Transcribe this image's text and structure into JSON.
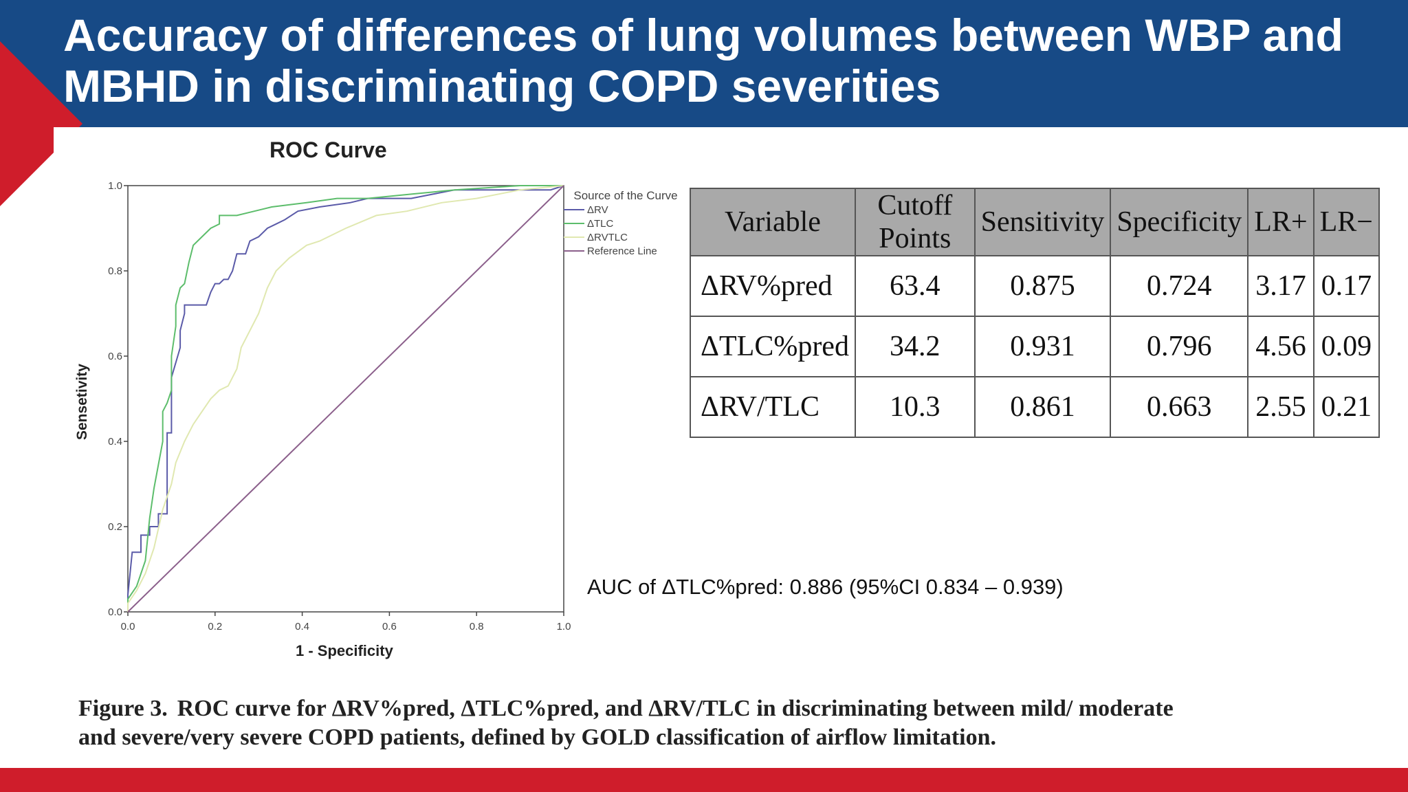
{
  "slide": {
    "title": "Accuracy of differences of lung volumes between WBP and MBHD in discriminating COPD severities",
    "colors": {
      "header": "#174a86",
      "accent": "#cf1d2b"
    }
  },
  "chart_data": {
    "type": "line",
    "title": "ROC Curve",
    "xlabel": "1 - Specificity",
    "ylabel": "Sensetivity",
    "xlim": [
      0,
      1
    ],
    "ylim": [
      0,
      1
    ],
    "x_ticks": [
      "0.0",
      "0.2",
      "0.4",
      "0.6",
      "0.8",
      "1.0"
    ],
    "y_ticks": [
      "0.0",
      "0.2",
      "0.4",
      "0.6",
      "0.8",
      "1.0"
    ],
    "legend": {
      "title": "Source of the Curve",
      "position": "right",
      "items": [
        "ΔRV",
        "ΔTLC",
        "ΔRVTLC",
        "Reference Line"
      ]
    },
    "series": [
      {
        "name": "ΔRV",
        "color": "#5a5aa8",
        "points": [
          [
            0,
            0
          ],
          [
            0,
            0.04
          ],
          [
            0.01,
            0.14
          ],
          [
            0.03,
            0.14
          ],
          [
            0.03,
            0.18
          ],
          [
            0.05,
            0.18
          ],
          [
            0.05,
            0.2
          ],
          [
            0.07,
            0.2
          ],
          [
            0.07,
            0.23
          ],
          [
            0.09,
            0.23
          ],
          [
            0.09,
            0.42
          ],
          [
            0.1,
            0.42
          ],
          [
            0.1,
            0.55
          ],
          [
            0.12,
            0.62
          ],
          [
            0.12,
            0.66
          ],
          [
            0.13,
            0.7
          ],
          [
            0.13,
            0.72
          ],
          [
            0.18,
            0.72
          ],
          [
            0.19,
            0.75
          ],
          [
            0.2,
            0.77
          ],
          [
            0.21,
            0.77
          ],
          [
            0.22,
            0.78
          ],
          [
            0.23,
            0.78
          ],
          [
            0.24,
            0.8
          ],
          [
            0.25,
            0.84
          ],
          [
            0.27,
            0.84
          ],
          [
            0.28,
            0.87
          ],
          [
            0.3,
            0.88
          ],
          [
            0.32,
            0.9
          ],
          [
            0.34,
            0.91
          ],
          [
            0.36,
            0.92
          ],
          [
            0.39,
            0.94
          ],
          [
            0.44,
            0.95
          ],
          [
            0.51,
            0.96
          ],
          [
            0.55,
            0.97
          ],
          [
            0.65,
            0.97
          ],
          [
            0.7,
            0.98
          ],
          [
            0.75,
            0.99
          ],
          [
            0.97,
            0.99
          ],
          [
            1,
            1
          ]
        ]
      },
      {
        "name": "ΔTLC",
        "color": "#5cbd6b",
        "points": [
          [
            0,
            0
          ],
          [
            0,
            0.03
          ],
          [
            0.02,
            0.06
          ],
          [
            0.04,
            0.12
          ],
          [
            0.05,
            0.22
          ],
          [
            0.06,
            0.29
          ],
          [
            0.08,
            0.4
          ],
          [
            0.08,
            0.47
          ],
          [
            0.09,
            0.49
          ],
          [
            0.1,
            0.52
          ],
          [
            0.1,
            0.6
          ],
          [
            0.11,
            0.67
          ],
          [
            0.11,
            0.72
          ],
          [
            0.12,
            0.76
          ],
          [
            0.13,
            0.77
          ],
          [
            0.14,
            0.82
          ],
          [
            0.15,
            0.86
          ],
          [
            0.16,
            0.87
          ],
          [
            0.17,
            0.88
          ],
          [
            0.19,
            0.9
          ],
          [
            0.21,
            0.91
          ],
          [
            0.21,
            0.93
          ],
          [
            0.23,
            0.93
          ],
          [
            0.25,
            0.93
          ],
          [
            0.29,
            0.94
          ],
          [
            0.33,
            0.95
          ],
          [
            0.41,
            0.96
          ],
          [
            0.48,
            0.97
          ],
          [
            0.55,
            0.97
          ],
          [
            0.65,
            0.98
          ],
          [
            0.75,
            0.99
          ],
          [
            0.9,
            1
          ],
          [
            1,
            1
          ]
        ]
      },
      {
        "name": "ΔRVTLC",
        "color": "#e0e8b0",
        "points": [
          [
            0,
            0
          ],
          [
            0,
            0.02
          ],
          [
            0.02,
            0.05
          ],
          [
            0.04,
            0.09
          ],
          [
            0.06,
            0.15
          ],
          [
            0.08,
            0.24
          ],
          [
            0.1,
            0.3
          ],
          [
            0.11,
            0.35
          ],
          [
            0.13,
            0.4
          ],
          [
            0.15,
            0.44
          ],
          [
            0.17,
            0.47
          ],
          [
            0.19,
            0.5
          ],
          [
            0.21,
            0.52
          ],
          [
            0.23,
            0.53
          ],
          [
            0.25,
            0.57
          ],
          [
            0.26,
            0.62
          ],
          [
            0.28,
            0.66
          ],
          [
            0.3,
            0.7
          ],
          [
            0.32,
            0.76
          ],
          [
            0.34,
            0.8
          ],
          [
            0.37,
            0.83
          ],
          [
            0.41,
            0.86
          ],
          [
            0.44,
            0.87
          ],
          [
            0.5,
            0.9
          ],
          [
            0.57,
            0.93
          ],
          [
            0.64,
            0.94
          ],
          [
            0.72,
            0.96
          ],
          [
            0.8,
            0.97
          ],
          [
            0.9,
            0.99
          ],
          [
            1,
            1
          ]
        ]
      },
      {
        "name": "Reference Line",
        "color": "#8b5f8b",
        "points": [
          [
            0,
            0
          ],
          [
            1,
            1
          ]
        ]
      }
    ]
  },
  "table": {
    "headers": [
      "Variable",
      "Cutoff Points",
      "Sensitivity",
      "Specificity",
      "LR+",
      "LR−"
    ],
    "rows": [
      [
        "ΔRV%pred",
        "63.4",
        "0.875",
        "0.724",
        "3.17",
        "0.17"
      ],
      [
        "ΔTLC%pred",
        "34.2",
        "0.931",
        "0.796",
        "4.56",
        "0.09"
      ],
      [
        "ΔRV/TLC",
        "10.3",
        "0.861",
        "0.663",
        "2.55",
        "0.21"
      ]
    ]
  },
  "auc_note": "AUC of ΔTLC%pred: 0.886 (95%CI 0.834 – 0.939)",
  "caption": {
    "label": "Figure 3.",
    "text": "ROC curve for ΔRV%pred, ΔTLC%pred, and ΔRV/TLC in discriminating between mild/ moderate and severe/very severe COPD patients, defined by GOLD classification of airflow limitation."
  }
}
